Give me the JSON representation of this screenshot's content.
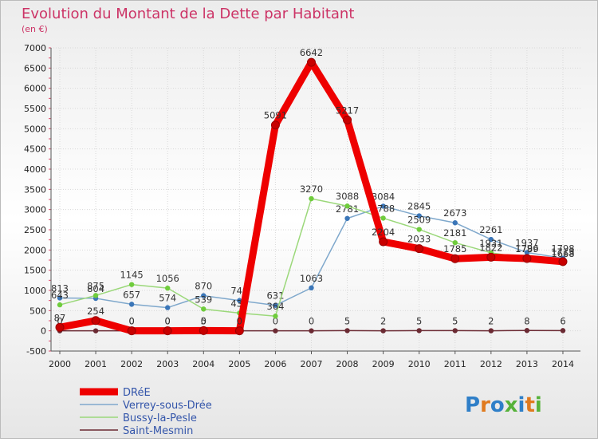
{
  "chart_data": {
    "type": "line",
    "title": "Evolution du Montant de la Dette par Habitant",
    "subtitle": "(en €)",
    "xlabel": "",
    "ylabel": "",
    "ylim": [
      -500,
      7000
    ],
    "yticks": [
      -500,
      0,
      500,
      1000,
      1500,
      2000,
      2500,
      3000,
      3500,
      4000,
      4500,
      5000,
      5500,
      6000,
      6500,
      7000
    ],
    "grid": true,
    "legend_position": "bottom-left",
    "x": [
      "2000",
      "2001",
      "2002",
      "2003",
      "2004",
      "2005",
      "2006",
      "2007",
      "2008",
      "2009",
      "2010",
      "2011",
      "2012",
      "2013",
      "2014"
    ],
    "series": [
      {
        "name": "Saint-Mesmin",
        "color": "#6b2a33",
        "values": [
          0,
          0,
          0,
          0,
          0,
          0,
          0,
          0,
          5,
          2,
          5,
          5,
          2,
          8,
          6
        ],
        "labels": [
          "0",
          "0",
          "0",
          "0",
          "0",
          "0",
          "0",
          "0",
          "5",
          "2",
          "5",
          "5",
          "2",
          "8",
          "6"
        ]
      },
      {
        "name": "Verrey-sous-Drée",
        "color": "#7fa8cc",
        "marker": "#3b76b8",
        "values": [
          813,
          804,
          657,
          574,
          870,
          749,
          631,
          1063,
          2781,
          3084,
          2845,
          2673,
          2261,
          1937,
          1798
        ],
        "labels": [
          "813",
          "804",
          "657",
          "574",
          "870",
          "749",
          "631",
          "1063",
          "2781",
          "3084",
          "2845",
          "2673",
          "2261",
          "1937",
          "1798"
        ]
      },
      {
        "name": "Bussy-la-Pesle",
        "color": "#9bd87a",
        "marker": "#6fcc3c",
        "values": [
          643,
          875,
          1145,
          1056,
          539,
          439,
          364,
          3270,
          3088,
          2788,
          2509,
          2181,
          1931,
          1796,
          1668
        ],
        "labels": [
          "643",
          "875",
          "1145",
          "1056",
          "539",
          "439",
          "364",
          "3270",
          "3088",
          "2788",
          "2509",
          "2181",
          "1931",
          "1796",
          "1668"
        ]
      },
      {
        "name": "DRéE",
        "color": "#ee0000",
        "marker": "#c80000",
        "values": [
          87,
          254,
          0,
          0,
          5,
          0,
          5091,
          6642,
          5217,
          2204,
          2033,
          1785,
          1822,
          1789,
          1713
        ],
        "labels": [
          "87",
          "254",
          "0",
          "0",
          "5",
          "0",
          "5091",
          "6642",
          "5217",
          "2204",
          "2033",
          "1785",
          "1822",
          "1789",
          "1713"
        ]
      }
    ]
  },
  "legend": {
    "items": [
      {
        "name": "DRéE",
        "color": "#ee0000"
      },
      {
        "name": "Verrey-sous-Drée",
        "color": "#7fa8cc"
      },
      {
        "name": "Bussy-la-Pesle",
        "color": "#9bd87a"
      },
      {
        "name": "Saint-Mesmin",
        "color": "#6b2a33"
      }
    ]
  },
  "branding": {
    "logo_text": "Proxiti"
  }
}
